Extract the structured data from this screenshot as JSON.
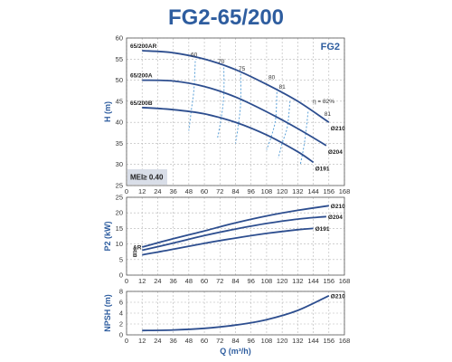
{
  "title": "FG2-65/200",
  "chart_data": [
    {
      "type": "line",
      "ylabel": "H (m)",
      "badge": "FG2",
      "mei": "MEI≥ 0.40",
      "xlim": [
        0,
        168
      ],
      "ylim": [
        25,
        60
      ],
      "xticks": [
        0,
        12,
        24,
        36,
        48,
        60,
        72,
        84,
        96,
        108,
        120,
        132,
        144,
        156,
        168
      ],
      "yticks": [
        25,
        30,
        35,
        40,
        45,
        50,
        55,
        60
      ],
      "series": [
        {
          "name": "65/200AR",
          "end_label": "Ø210",
          "x": [
            12,
            36,
            60,
            84,
            108,
            132,
            156
          ],
          "y": [
            57,
            56.5,
            55,
            52.5,
            49,
            45,
            40
          ]
        },
        {
          "name": "65/200A",
          "end_label": "Ø204",
          "x": [
            12,
            36,
            60,
            84,
            108,
            132,
            154
          ],
          "y": [
            50,
            49.8,
            48.5,
            46,
            42.5,
            38.5,
            34.5
          ]
        },
        {
          "name": "65/200B",
          "end_label": "Ø191",
          "x": [
            12,
            36,
            60,
            84,
            108,
            132,
            144
          ],
          "y": [
            43.5,
            43,
            42,
            40,
            37,
            33,
            30.5
          ]
        }
      ],
      "efficiency_labels": [
        "60",
        "70",
        "75",
        "80",
        "81",
        "η = 82%",
        "81"
      ],
      "efficiency_curves": [
        {
          "x": [
            53,
            52,
            50,
            48
          ],
          "y": [
            54.5,
            48,
            43,
            38
          ]
        },
        {
          "x": [
            75,
            75,
            73,
            70
          ],
          "y": [
            53,
            46.5,
            41,
            36
          ]
        },
        {
          "x": [
            88,
            88,
            86,
            84
          ],
          "y": [
            51.5,
            44.5,
            39,
            35
          ]
        },
        {
          "x": [
            116,
            115,
            112,
            108
          ],
          "y": [
            48,
            41,
            37,
            33.5
          ]
        },
        {
          "x": [
            126,
            124,
            120,
            117
          ],
          "y": [
            45,
            39,
            35,
            31.5
          ]
        },
        {
          "x": [
            140,
            138,
            136,
            134
          ],
          "y": [
            42.5,
            37,
            33,
            30
          ]
        }
      ]
    },
    {
      "type": "line",
      "ylabel": "P2 (kW)",
      "xlim": [
        0,
        168
      ],
      "ylim": [
        0,
        25
      ],
      "xticks": [
        0,
        12,
        24,
        36,
        48,
        60,
        72,
        84,
        96,
        108,
        120,
        132,
        144,
        156,
        168
      ],
      "yticks": [
        0,
        5,
        10,
        15,
        20,
        25
      ],
      "series": [
        {
          "name": "AR",
          "end_label": "Ø210",
          "x": [
            12,
            36,
            60,
            84,
            108,
            132,
            156
          ],
          "y": [
            9,
            11.7,
            14.2,
            16.8,
            19,
            20.8,
            22.3
          ]
        },
        {
          "name": "A",
          "end_label": "Ø204",
          "x": [
            12,
            36,
            60,
            84,
            108,
            132,
            154
          ],
          "y": [
            8,
            10.3,
            12.7,
            14.8,
            16.6,
            18,
            18.8
          ]
        },
        {
          "name": "B",
          "end_label": "Ø191",
          "x": [
            12,
            36,
            60,
            84,
            108,
            132,
            144
          ],
          "y": [
            6.5,
            8.3,
            10.2,
            11.9,
            13.4,
            14.6,
            15
          ]
        }
      ]
    },
    {
      "type": "line",
      "ylabel": "NPSH (m)",
      "xlabel": "Q (m³/h)",
      "xlim": [
        0,
        168
      ],
      "ylim": [
        0,
        8
      ],
      "xticks": [
        0,
        12,
        24,
        36,
        48,
        60,
        72,
        84,
        96,
        108,
        120,
        132,
        144,
        156,
        168
      ],
      "yticks": [
        0,
        2,
        4,
        6,
        8
      ],
      "series": [
        {
          "name": "",
          "end_label": "Ø210",
          "x": [
            12,
            36,
            60,
            84,
            108,
            132,
            156
          ],
          "y": [
            0.8,
            0.9,
            1.2,
            1.8,
            2.8,
            4.5,
            7.2
          ]
        }
      ]
    }
  ]
}
